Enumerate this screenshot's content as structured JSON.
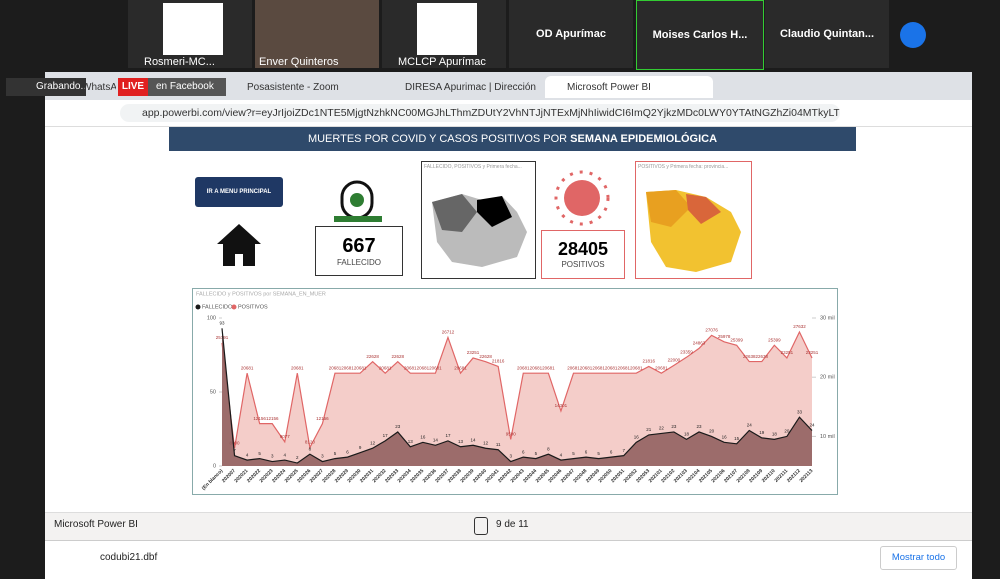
{
  "zoom": {
    "recording": "Grabando...",
    "live": "LIVE",
    "live_target": "en Facebook",
    "participants": [
      "Rosmeri-MC...",
      "Enver Quinteros",
      "MCLCP Apurímac",
      "OD Apurímac",
      "Moises Carlos H...",
      "Claudio Quintan..."
    ]
  },
  "browser": {
    "tabs": [
      "WhatsApp",
      "Posasistente - Zoom",
      "DIRESA Apurimac | Dirección Reg",
      "Microsoft Power BI"
    ],
    "url": "app.powerbi.com/view?r=eyJrIjoiZDc1NTE5MjgtNzhkNC00MGJhLThmZDUtY2VhNTJjNTExMjNhIiwidCI6ImQ2YjkzMDc0LWY0YTAtNGZhZi04MTkyLTE4YjY0Mz..."
  },
  "report": {
    "title": "MUERTES POR COVID Y CASOS POSITIVOS POR ",
    "title_bold": "SEMANA EPIDEMIOLÓGICA",
    "button": "IR A MENU PRINCIPAL",
    "cards": [
      {
        "value": "667",
        "label": "FALLECIDO"
      },
      {
        "value": "28405",
        "label": "POSITIVOS"
      }
    ],
    "map_titles": [
      "FALLECIDO, POSITIVOS y Primera fecha...",
      "POSITIVOS y Primera fecha: provincia..."
    ]
  },
  "chart_data": {
    "type": "area",
    "title": "FALLECIDO y POSITIVOS por SEMANA_EN_MUER",
    "categories": [
      "(En blanco)",
      "202007",
      "202021",
      "202022",
      "202023",
      "202024",
      "202025",
      "202026",
      "202027",
      "202028",
      "202029",
      "202030",
      "202031",
      "202032",
      "202033",
      "202034",
      "202035",
      "202036",
      "202037",
      "202038",
      "202039",
      "202040",
      "202041",
      "202042",
      "202043",
      "202044",
      "202045",
      "202046",
      "202047",
      "202048",
      "202049",
      "202050",
      "202051",
      "202052",
      "202053",
      "202101",
      "202102",
      "202103",
      "202104",
      "202105",
      "202106",
      "202107",
      "202108",
      "202109",
      "202110",
      "202111",
      "202112",
      "202113"
    ],
    "series": [
      {
        "name": "FALLECIDO",
        "color": "#1a1a1a",
        "fill": "#8c5a5a",
        "axis": "y",
        "values": [
          93,
          7,
          4,
          5,
          3,
          4,
          2,
          8,
          3,
          5,
          6,
          9,
          12,
          17,
          23,
          13,
          16,
          14,
          17,
          13,
          14,
          12,
          11,
          3,
          6,
          5,
          8,
          4,
          5,
          6,
          5,
          6,
          7,
          16,
          21,
          22,
          23,
          18,
          23,
          20,
          16,
          15,
          24,
          19,
          18,
          20,
          33,
          24
        ]
      },
      {
        "name": "POSITIVOS",
        "color": "#e06666",
        "fill": "#f2c4c0",
        "axis": "y2",
        "values": [
          25791,
          8000,
          20681,
          12156,
          12156,
          9077,
          20681,
          8120,
          12156,
          20681,
          20681,
          20681,
          22628,
          20681,
          22628,
          20681,
          20681,
          20681,
          26712,
          20681,
          23251,
          22628,
          21816,
          9500,
          20681,
          20681,
          20681,
          14301,
          20681,
          20681,
          20681,
          20681,
          20681,
          20681,
          21816,
          20681,
          22000,
          23359,
          24863,
          27076,
          25978,
          25399,
          22638,
          22638,
          25399,
          23251,
          27632,
          23251
        ]
      }
    ],
    "ylim": [
      0,
      100
    ],
    "yticks": [
      0,
      50,
      100
    ],
    "y2lim": [
      5000,
      30000
    ],
    "y2ticks": [
      {
        "value": 10000,
        "label": "10 mil"
      },
      {
        "value": 20000,
        "label": "20 mil"
      },
      {
        "value": 30000,
        "label": "30 mil"
      }
    ]
  },
  "footer": {
    "app": "Microsoft Power BI",
    "page": "9 de 11",
    "download": "codubi21.dbf",
    "show_all": "Mostrar todo"
  }
}
